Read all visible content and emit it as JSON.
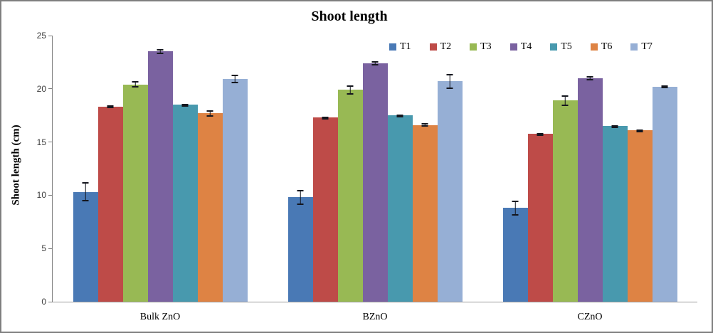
{
  "chart_data": {
    "type": "bar",
    "title": "Shoot length",
    "ylabel": "Shoot length (cm)",
    "xlabel": "",
    "categories": [
      "Bulk ZnO",
      "BZnO",
      "CZnO"
    ],
    "y_ticks": [
      0,
      5,
      10,
      15,
      20,
      25
    ],
    "ylim": [
      0,
      25
    ],
    "grid": false,
    "legend_position": "top-right",
    "error_bars": true,
    "series": [
      {
        "name": "T1",
        "color": "#4979B5",
        "values": [
          10.3,
          9.8,
          8.8
        ],
        "errors": [
          0.9,
          0.7,
          0.7
        ]
      },
      {
        "name": "T2",
        "color": "#BE4B48",
        "values": [
          18.3,
          17.3,
          15.8
        ],
        "errors": [
          0.15,
          0.1,
          0.05
        ]
      },
      {
        "name": "T3",
        "color": "#98B954",
        "values": [
          20.4,
          19.9,
          18.9
        ],
        "errors": [
          0.3,
          0.45,
          0.5
        ]
      },
      {
        "name": "T4",
        "color": "#7A62A0",
        "values": [
          23.5,
          22.4,
          21.0
        ],
        "errors": [
          0.25,
          0.2,
          0.2
        ]
      },
      {
        "name": "T5",
        "color": "#4899AE",
        "values": [
          18.5,
          17.5,
          16.5
        ],
        "errors": [
          0.1,
          0.1,
          0.05
        ]
      },
      {
        "name": "T6",
        "color": "#DE8344",
        "values": [
          17.7,
          16.6,
          16.1
        ],
        "errors": [
          0.3,
          0.15,
          0.05
        ]
      },
      {
        "name": "T7",
        "color": "#96AFD5",
        "values": [
          20.9,
          20.7,
          20.2
        ],
        "errors": [
          0.4,
          0.7,
          0.15
        ]
      }
    ]
  }
}
